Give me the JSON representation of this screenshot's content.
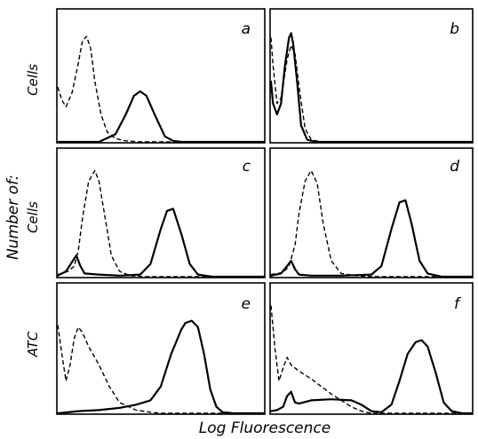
{
  "chart_data": {
    "type": "line",
    "xlabel": "Log Fluorescence",
    "ylabel": "Number of:",
    "row_labels": [
      "Cells",
      "Cells",
      "ATC"
    ],
    "panels": [
      {
        "label": "a",
        "series": [
          {
            "style": "dashed",
            "x": [
              0,
              0.02,
              0.04,
              0.07,
              0.1,
              0.12,
              0.14,
              0.16,
              0.18,
              0.21,
              0.24,
              0.28,
              0.33,
              0.4,
              0.5,
              0.6,
              1
            ],
            "y": [
              0.5,
              0.38,
              0.32,
              0.45,
              0.72,
              0.92,
              0.96,
              0.85,
              0.55,
              0.25,
              0.09,
              0.03,
              0.01,
              0,
              0,
              0,
              0
            ]
          },
          {
            "style": "solid",
            "x": [
              0,
              0.1,
              0.2,
              0.28,
              0.33,
              0.37,
              0.4,
              0.43,
              0.47,
              0.52,
              0.56,
              0.6,
              1
            ],
            "y": [
              0,
              0,
              0,
              0.07,
              0.25,
              0.42,
              0.46,
              0.42,
              0.25,
              0.05,
              0.01,
              0,
              0
            ]
          }
        ]
      },
      {
        "label": "b",
        "series": [
          {
            "style": "dashed",
            "x": [
              0,
              0.01,
              0.03,
              0.05,
              0.08,
              0.1,
              0.12,
              0.14,
              0.17,
              0.2,
              0.25,
              0.35,
              1
            ],
            "y": [
              0.95,
              0.7,
              0.35,
              0.4,
              0.75,
              0.88,
              0.8,
              0.5,
              0.12,
              0.02,
              0,
              0,
              0
            ]
          },
          {
            "style": "solid",
            "x": [
              0,
              0.01,
              0.03,
              0.05,
              0.07,
              0.09,
              0.1,
              0.11,
              0.13,
              0.15,
              0.18,
              0.22,
              0.3,
              1
            ],
            "y": [
              0.55,
              0.35,
              0.25,
              0.35,
              0.7,
              0.95,
              0.99,
              0.9,
              0.55,
              0.15,
              0.02,
              0,
              0,
              0
            ]
          }
        ]
      },
      {
        "label": "c",
        "series": [
          {
            "style": "dashed",
            "x": [
              0,
              0.05,
              0.08,
              0.1,
              0.12,
              0.15,
              0.18,
              0.2,
              0.23,
              0.26,
              0.3,
              0.35,
              0.42,
              0.5,
              1
            ],
            "y": [
              0.02,
              0.05,
              0.1,
              0.25,
              0.55,
              0.9,
              1,
              0.9,
              0.55,
              0.2,
              0.05,
              0.01,
              0,
              0,
              0
            ]
          },
          {
            "style": "solid",
            "x": [
              0,
              0.04,
              0.07,
              0.09,
              0.11,
              0.13,
              0.2,
              0.3,
              0.4,
              0.45,
              0.5,
              0.53,
              0.56,
              0.6,
              0.64,
              0.68,
              0.75,
              1
            ],
            "y": [
              0.01,
              0.05,
              0.14,
              0.2,
              0.1,
              0.03,
              0.02,
              0.01,
              0.02,
              0.12,
              0.45,
              0.62,
              0.64,
              0.4,
              0.12,
              0.02,
              0,
              0
            ]
          }
        ]
      },
      {
        "label": "d",
        "series": [
          {
            "style": "dashed",
            "x": [
              0,
              0.06,
              0.09,
              0.12,
              0.14,
              0.17,
              0.2,
              0.23,
              0.26,
              0.3,
              0.35,
              0.42,
              0.5,
              1
            ],
            "y": [
              0.02,
              0.04,
              0.1,
              0.3,
              0.6,
              0.9,
              1,
              0.88,
              0.5,
              0.15,
              0.03,
              0.01,
              0,
              0
            ]
          },
          {
            "style": "solid",
            "x": [
              0,
              0.05,
              0.08,
              0.1,
              0.12,
              0.14,
              0.2,
              0.35,
              0.5,
              0.55,
              0.6,
              0.64,
              0.67,
              0.7,
              0.74,
              0.78,
              0.85,
              1
            ],
            "y": [
              0.01,
              0.03,
              0.1,
              0.15,
              0.07,
              0.02,
              0.01,
              0.01,
              0.02,
              0.1,
              0.45,
              0.7,
              0.72,
              0.5,
              0.15,
              0.03,
              0,
              0
            ]
          }
        ]
      },
      {
        "label": "e",
        "series": [
          {
            "style": "dashed",
            "x": [
              0,
              0.02,
              0.04,
              0.06,
              0.08,
              0.1,
              0.12,
              0.15,
              0.2,
              0.25,
              0.3,
              0.38,
              0.45,
              0.5,
              0.55,
              1
            ],
            "y": [
              0.82,
              0.55,
              0.3,
              0.45,
              0.7,
              0.8,
              0.75,
              0.62,
              0.45,
              0.25,
              0.1,
              0.03,
              0.01,
              0,
              0,
              0
            ]
          },
          {
            "style": "solid",
            "x": [
              0,
              0.1,
              0.2,
              0.3,
              0.38,
              0.45,
              0.5,
              0.55,
              0.6,
              0.62,
              0.65,
              0.68,
              0.71,
              0.74,
              0.77,
              0.8,
              0.85,
              0.9,
              1
            ],
            "y": [
              0,
              0.02,
              0.03,
              0.05,
              0.08,
              0.12,
              0.25,
              0.55,
              0.78,
              0.84,
              0.86,
              0.8,
              0.55,
              0.22,
              0.06,
              0.01,
              0,
              0,
              0
            ]
          }
        ]
      },
      {
        "label": "f",
        "series": [
          {
            "style": "dashed",
            "x": [
              0,
              0.02,
              0.04,
              0.06,
              0.08,
              0.1,
              0.12,
              0.15,
              0.2,
              0.25,
              0.3,
              0.35,
              0.4,
              0.45,
              0.5,
              0.55,
              1
            ],
            "y": [
              1,
              0.6,
              0.3,
              0.42,
              0.52,
              0.45,
              0.42,
              0.38,
              0.32,
              0.25,
              0.18,
              0.12,
              0.06,
              0.02,
              0,
              0,
              0
            ]
          },
          {
            "style": "solid",
            "x": [
              0,
              0.03,
              0.06,
              0.08,
              0.1,
              0.12,
              0.14,
              0.2,
              0.3,
              0.4,
              0.45,
              0.5,
              0.55,
              0.6,
              0.64,
              0.68,
              0.72,
              0.75,
              0.78,
              0.82,
              0.86,
              0.9,
              0.95,
              1
            ],
            "y": [
              0.02,
              0.03,
              0.06,
              0.16,
              0.2,
              0.1,
              0.09,
              0.12,
              0.13,
              0.12,
              0.08,
              0.02,
              0.01,
              0.08,
              0.3,
              0.55,
              0.66,
              0.68,
              0.62,
              0.38,
              0.1,
              0.02,
              0,
              0
            ]
          }
        ]
      }
    ]
  }
}
